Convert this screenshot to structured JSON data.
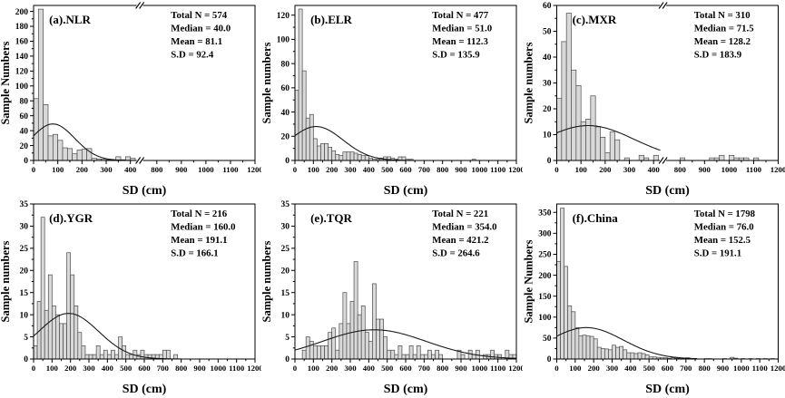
{
  "figure": {
    "description": "Six-panel histogram figure of Secchi depth (SD) sample distributions by river region",
    "shared_xlabel": "SD (cm)",
    "colors": {
      "background": "#ffffff",
      "bar_fill": "#d9d9d9",
      "bar_stroke": "#4a4a4a",
      "axis": "#000000",
      "curve": "#1a1a1a",
      "text": "#000000"
    }
  },
  "chart_data": [
    {
      "type": "bar",
      "id": "a",
      "region": "NLR",
      "title": "(a).NLR",
      "ylabel": "Sample Numbers",
      "xlabel": "SD (cm)",
      "stats": {
        "total_n": 574,
        "median": 40.0,
        "mean": 81.1,
        "sd": 92.4
      },
      "stats_lines": [
        "Total N = 574",
        "Median = 40.0",
        "Mean = 81.1",
        "S.D = 92.4"
      ],
      "ylim": [
        0,
        208
      ],
      "ytick_step": 20,
      "xlim": [
        0,
        1200
      ],
      "xtick_step": 100,
      "x_break": {
        "segment1_max": 430,
        "segment2_min": 740,
        "ticks_left": [
          0,
          100,
          200,
          300,
          400
        ],
        "ticks_right": [
          800,
          900,
          1000,
          1100,
          1200
        ],
        "minors_left": [
          50,
          150,
          250,
          350
        ],
        "minors_right": [
          850,
          950,
          1050,
          1150
        ]
      },
      "bin_width": 20,
      "bars": [
        [
          0,
          83
        ],
        [
          20,
          203
        ],
        [
          40,
          75
        ],
        [
          60,
          33
        ],
        [
          80,
          35
        ],
        [
          100,
          27
        ],
        [
          120,
          17
        ],
        [
          140,
          16
        ],
        [
          160,
          9
        ],
        [
          180,
          14
        ],
        [
          200,
          15
        ],
        [
          220,
          16
        ],
        [
          240,
          3
        ],
        [
          260,
          2
        ],
        [
          280,
          2
        ],
        [
          300,
          1
        ],
        [
          320,
          1
        ],
        [
          340,
          5
        ],
        [
          360,
          1
        ],
        [
          380,
          5
        ],
        [
          400,
          3
        ]
      ],
      "fit_curve": {
        "type": "gaussian",
        "amplitude": 49,
        "mu": 80,
        "sigma": 90,
        "x_end": 420
      },
      "grid": false,
      "legend": null
    },
    {
      "type": "bar",
      "id": "b",
      "region": "ELR",
      "title": "(b).ELR",
      "ylabel": "Sample numbers",
      "xlabel": "SD (cm)",
      "stats": {
        "total_n": 477,
        "median": 51.0,
        "mean": 112.3,
        "sd": 135.9
      },
      "stats_lines": [
        "Total N = 477",
        "Median = 51.0",
        "Mean = 112.3",
        "S.D = 135.9"
      ],
      "ylim": [
        0,
        128
      ],
      "ytick_step": 20,
      "xlim": [
        0,
        1200
      ],
      "xtick_step": 100,
      "x_break": null,
      "bin_width": 20,
      "bars": [
        [
          0,
          58
        ],
        [
          20,
          125
        ],
        [
          40,
          74
        ],
        [
          60,
          35
        ],
        [
          80,
          38
        ],
        [
          100,
          18
        ],
        [
          120,
          12
        ],
        [
          140,
          14
        ],
        [
          160,
          14
        ],
        [
          180,
          11
        ],
        [
          200,
          8
        ],
        [
          220,
          5
        ],
        [
          240,
          4
        ],
        [
          260,
          7
        ],
        [
          280,
          7
        ],
        [
          300,
          7
        ],
        [
          320,
          6
        ],
        [
          340,
          5
        ],
        [
          360,
          4
        ],
        [
          380,
          4
        ],
        [
          400,
          2
        ],
        [
          420,
          1
        ],
        [
          440,
          1
        ],
        [
          460,
          2
        ],
        [
          480,
          3
        ],
        [
          500,
          3
        ],
        [
          520,
          2
        ],
        [
          540,
          1
        ],
        [
          560,
          3
        ],
        [
          580,
          3
        ],
        [
          600,
          1
        ],
        [
          620,
          1
        ],
        [
          960,
          1
        ]
      ],
      "fit_curve": {
        "type": "gaussian",
        "amplitude": 28,
        "mu": 115,
        "sigma": 145,
        "x_end": 640
      },
      "grid": false,
      "legend": null
    },
    {
      "type": "bar",
      "id": "c",
      "region": "MXR",
      "title": "(c).MXR",
      "ylabel": "Sample numbers",
      "xlabel": "SD (cm)",
      "stats": {
        "total_n": 310,
        "median": 71.5,
        "mean": 128.2,
        "sd": 183.9
      },
      "stats_lines": [
        "Total N = 310",
        "Median = 71.5",
        "Mean = 128.2",
        "S.D = 183.9"
      ],
      "ylim": [
        0,
        60
      ],
      "ytick_step": 10,
      "xlim": [
        0,
        1200
      ],
      "xtick_step": 100,
      "x_break": {
        "segment1_max": 430,
        "segment2_min": 740,
        "ticks_left": [
          0,
          100,
          200,
          300,
          400
        ],
        "ticks_right": [
          800,
          900,
          1000,
          1100,
          1200
        ],
        "minors_left": [
          50,
          150,
          250,
          350
        ],
        "minors_right": [
          850,
          950,
          1050,
          1150
        ]
      },
      "bin_width": 20,
      "bars": [
        [
          0,
          24
        ],
        [
          20,
          46
        ],
        [
          40,
          57
        ],
        [
          60,
          35
        ],
        [
          80,
          29
        ],
        [
          100,
          15
        ],
        [
          120,
          16
        ],
        [
          140,
          25
        ],
        [
          160,
          13
        ],
        [
          180,
          9
        ],
        [
          200,
          3
        ],
        [
          220,
          11
        ],
        [
          240,
          8
        ],
        [
          280,
          1
        ],
        [
          340,
          2
        ],
        [
          360,
          1
        ],
        [
          400,
          2
        ],
        [
          420,
          1
        ],
        [
          800,
          1
        ],
        [
          920,
          1
        ],
        [
          940,
          1
        ],
        [
          960,
          2
        ],
        [
          1000,
          2
        ],
        [
          1020,
          1
        ],
        [
          1040,
          1
        ],
        [
          1060,
          1
        ],
        [
          1100,
          1
        ]
      ],
      "fit_curve": {
        "type": "gaussian",
        "amplitude": 13.5,
        "mu": 130,
        "sigma": 190,
        "x_end": 428
      },
      "grid": false,
      "legend": null
    },
    {
      "type": "bar",
      "id": "d",
      "region": "YGR",
      "title": "(d).YGR",
      "ylabel": "Sample numbers",
      "xlabel": "SD (cm)",
      "stats": {
        "total_n": 216,
        "median": 160.0,
        "mean": 191.1,
        "sd": 166.1
      },
      "stats_lines": [
        "Total N = 216",
        "Median = 160.0",
        "Mean = 191.1",
        "S.D = 166.1"
      ],
      "ylim": [
        0,
        35
      ],
      "ytick_step": 5,
      "xlim": [
        0,
        1200
      ],
      "xtick_step": 100,
      "x_break": null,
      "bin_width": 20,
      "bars": [
        [
          0,
          3
        ],
        [
          20,
          13
        ],
        [
          40,
          32
        ],
        [
          60,
          11
        ],
        [
          80,
          19
        ],
        [
          100,
          12
        ],
        [
          120,
          10
        ],
        [
          140,
          8
        ],
        [
          160,
          8
        ],
        [
          180,
          24
        ],
        [
          200,
          19
        ],
        [
          220,
          12
        ],
        [
          240,
          6
        ],
        [
          260,
          3
        ],
        [
          280,
          1
        ],
        [
          300,
          1
        ],
        [
          320,
          1
        ],
        [
          340,
          3
        ],
        [
          360,
          1
        ],
        [
          380,
          2
        ],
        [
          400,
          1
        ],
        [
          420,
          2
        ],
        [
          440,
          1
        ],
        [
          460,
          5
        ],
        [
          480,
          3
        ],
        [
          500,
          1
        ],
        [
          520,
          1
        ],
        [
          540,
          2
        ],
        [
          560,
          1
        ],
        [
          580,
          2
        ],
        [
          600,
          1
        ],
        [
          620,
          1
        ],
        [
          640,
          1
        ],
        [
          660,
          1
        ],
        [
          680,
          1
        ],
        [
          700,
          2
        ],
        [
          720,
          2
        ],
        [
          760,
          1
        ]
      ],
      "fit_curve": {
        "type": "gaussian",
        "amplitude": 10.3,
        "mu": 190,
        "sigma": 162,
        "x_end": 820
      },
      "grid": false,
      "legend": null
    },
    {
      "type": "bar",
      "id": "e",
      "region": "TQR",
      "title": "(e).TQR",
      "ylabel": "Sample numbers",
      "xlabel": "SD (cm)",
      "stats": {
        "total_n": 221,
        "median": 354.0,
        "mean": 421.2,
        "sd": 264.6
      },
      "stats_lines": [
        "Total N = 221",
        "Median = 354.0",
        "Mean = 421.2",
        "S.D = 264.6"
      ],
      "ylim": [
        0,
        35
      ],
      "ytick_step": 5,
      "xlim": [
        0,
        1200
      ],
      "xtick_step": 100,
      "x_break": null,
      "bin_width": 20,
      "bars": [
        [
          40,
          2
        ],
        [
          60,
          5
        ],
        [
          80,
          4
        ],
        [
          100,
          3
        ],
        [
          120,
          3
        ],
        [
          140,
          3
        ],
        [
          160,
          3
        ],
        [
          180,
          6
        ],
        [
          200,
          7
        ],
        [
          220,
          2
        ],
        [
          240,
          8
        ],
        [
          260,
          15
        ],
        [
          280,
          8
        ],
        [
          300,
          13
        ],
        [
          320,
          22
        ],
        [
          340,
          10
        ],
        [
          360,
          12
        ],
        [
          380,
          6
        ],
        [
          400,
          4
        ],
        [
          420,
          17
        ],
        [
          440,
          9
        ],
        [
          460,
          9
        ],
        [
          480,
          5
        ],
        [
          500,
          2
        ],
        [
          520,
          2
        ],
        [
          540,
          1
        ],
        [
          560,
          3
        ],
        [
          580,
          1
        ],
        [
          600,
          1
        ],
        [
          620,
          3
        ],
        [
          640,
          1
        ],
        [
          660,
          3
        ],
        [
          680,
          1
        ],
        [
          700,
          1
        ],
        [
          720,
          2
        ],
        [
          740,
          1
        ],
        [
          760,
          2
        ],
        [
          780,
          1
        ],
        [
          880,
          2
        ],
        [
          900,
          1
        ],
        [
          940,
          2
        ],
        [
          960,
          1
        ],
        [
          980,
          2
        ],
        [
          1020,
          1
        ],
        [
          1040,
          1
        ],
        [
          1060,
          2
        ],
        [
          1080,
          1
        ],
        [
          1100,
          1
        ],
        [
          1140,
          2
        ],
        [
          1160,
          1
        ],
        [
          1180,
          1
        ]
      ],
      "fit_curve": {
        "type": "gaussian",
        "amplitude": 6.6,
        "mu": 430,
        "sigma": 280,
        "x_end": 1200
      },
      "grid": false,
      "legend": null
    },
    {
      "type": "bar",
      "id": "f",
      "region": "China",
      "title": "(f).China",
      "ylabel": "Sample Numbers",
      "xlabel": "SD (cm)",
      "stats": {
        "total_n": 1798,
        "median": 76.0,
        "mean": 152.5,
        "sd": 191.1
      },
      "stats_lines": [
        "Total N = 1798",
        "Median = 76.0",
        "Mean = 152.5",
        "S.D = 191.1"
      ],
      "ylim": [
        0,
        370
      ],
      "ytick_step": 50,
      "xlim": [
        0,
        1200
      ],
      "xtick_step": 100,
      "x_break": null,
      "bin_width": 20,
      "bars": [
        [
          0,
          233
        ],
        [
          20,
          360
        ],
        [
          40,
          221
        ],
        [
          60,
          127
        ],
        [
          80,
          113
        ],
        [
          100,
          75
        ],
        [
          120,
          55
        ],
        [
          140,
          57
        ],
        [
          160,
          55
        ],
        [
          180,
          54
        ],
        [
          200,
          48
        ],
        [
          220,
          28
        ],
        [
          240,
          25
        ],
        [
          260,
          24
        ],
        [
          280,
          22
        ],
        [
          300,
          33
        ],
        [
          320,
          28
        ],
        [
          340,
          30
        ],
        [
          360,
          22
        ],
        [
          380,
          15
        ],
        [
          400,
          15
        ],
        [
          420,
          13
        ],
        [
          440,
          15
        ],
        [
          460,
          13
        ],
        [
          480,
          10
        ],
        [
          500,
          5
        ],
        [
          520,
          5
        ],
        [
          540,
          4
        ],
        [
          560,
          3
        ],
        [
          580,
          3
        ],
        [
          600,
          2
        ],
        [
          620,
          3
        ],
        [
          640,
          2
        ],
        [
          660,
          2
        ],
        [
          680,
          1
        ],
        [
          700,
          3
        ],
        [
          720,
          1
        ],
        [
          740,
          1
        ],
        [
          800,
          1
        ],
        [
          820,
          1
        ],
        [
          900,
          1
        ],
        [
          940,
          4
        ],
        [
          960,
          2
        ],
        [
          1000,
          1
        ],
        [
          1040,
          1
        ],
        [
          1080,
          1
        ],
        [
          1120,
          1
        ],
        [
          1160,
          1
        ]
      ],
      "fit_curve": {
        "type": "gaussian",
        "amplitude": 75,
        "mu": 160,
        "sigma": 200,
        "x_end": 760
      },
      "grid": false,
      "legend": null
    }
  ]
}
